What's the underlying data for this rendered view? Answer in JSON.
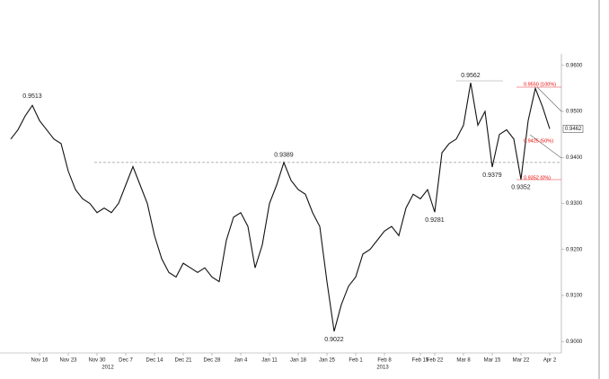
{
  "chart_data": {
    "type": "line",
    "color": "#111",
    "categories": [
      null,
      null,
      null,
      null,
      "Nov 16",
      null,
      null,
      null,
      "Nov 23",
      null,
      null,
      null,
      "Nov 30",
      null,
      null,
      null,
      "Dec 7",
      null,
      null,
      null,
      "Dec 14",
      null,
      null,
      null,
      "Dec 21",
      null,
      null,
      null,
      "Dec 28",
      null,
      null,
      null,
      "Jan 4",
      null,
      null,
      null,
      "Jan 11",
      null,
      null,
      null,
      "Jan 18",
      null,
      null,
      null,
      "Jan 25",
      null,
      null,
      null,
      "Feb 1",
      null,
      null,
      null,
      "Feb 8",
      null,
      null,
      null,
      null,
      "Feb 15",
      null,
      "Feb 22",
      null,
      null,
      null,
      "Mar 8",
      null,
      null,
      null,
      "Mar 15",
      null,
      null,
      null,
      "Mar 22",
      null,
      null,
      null,
      "Apr 2"
    ],
    "values": [
      0.944,
      0.946,
      0.949,
      0.9513,
      0.948,
      0.946,
      0.944,
      0.943,
      0.937,
      0.933,
      0.931,
      0.93,
      0.928,
      0.929,
      0.928,
      0.93,
      0.934,
      0.938,
      0.934,
      0.93,
      0.923,
      0.918,
      0.915,
      0.914,
      0.917,
      0.916,
      0.915,
      0.916,
      0.914,
      0.913,
      0.922,
      0.927,
      0.928,
      0.925,
      0.916,
      0.921,
      0.93,
      0.934,
      0.9389,
      0.935,
      0.933,
      0.932,
      0.928,
      0.925,
      0.913,
      0.9022,
      0.908,
      0.912,
      0.914,
      0.919,
      0.92,
      0.922,
      0.924,
      0.925,
      0.923,
      0.929,
      0.932,
      0.931,
      0.933,
      0.9281,
      0.941,
      0.943,
      0.944,
      0.947,
      0.9562,
      0.947,
      0.95,
      0.9379,
      0.945,
      0.946,
      0.944,
      0.9352,
      0.948,
      0.955,
      0.951,
      0.9462
    ],
    "ylim": [
      0.8975,
      0.9625
    ],
    "yticks": [
      {
        "value": 0.96,
        "label": "0.9600"
      },
      {
        "value": 0.95,
        "label": "0.9500"
      },
      {
        "value": 0.94,
        "label": "0.9400"
      },
      {
        "value": 0.93,
        "label": "0.9300"
      },
      {
        "value": 0.92,
        "label": "0.9200"
      },
      {
        "value": 0.91,
        "label": "0.9100"
      },
      {
        "value": 0.9,
        "label": "0.9000"
      }
    ],
    "year_labels": [
      "2012",
      "2013"
    ],
    "annotations": [
      "0.9513",
      "0.9389",
      "0.9022",
      "0.9281",
      "0.9562",
      "0.9379",
      "0.9352"
    ],
    "level_labels": [
      "0.9550 (100%)",
      "0.9425 (50%)",
      "0.9352 (0%)"
    ],
    "last_label": "0.9462"
  }
}
